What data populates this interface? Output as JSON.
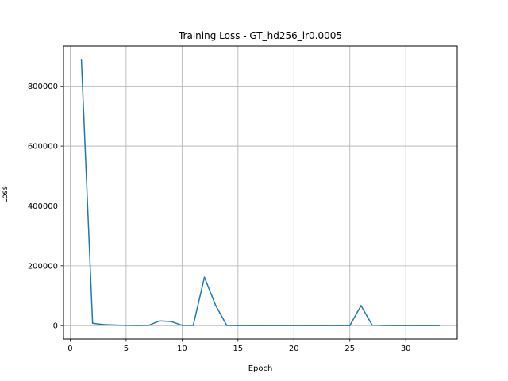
{
  "chart_data": {
    "type": "line",
    "title": "Training Loss - GT_hd256_lr0.0005",
    "xlabel": "Epoch",
    "ylabel": "Loss",
    "xlim": [
      -0.6,
      34.6
    ],
    "ylim": [
      -44500,
      934500
    ],
    "xticks": [
      0,
      5,
      10,
      15,
      20,
      25,
      30
    ],
    "yticks": [
      0,
      200000,
      400000,
      600000,
      800000
    ],
    "ytick_labels": [
      "0",
      "200000",
      "400000",
      "600000",
      "800000"
    ],
    "grid": true,
    "series": [
      {
        "color": "#1f77b4",
        "x": [
          1,
          2,
          3,
          4,
          5,
          6,
          7,
          8,
          9,
          10,
          11,
          12,
          13,
          14,
          15,
          16,
          17,
          18,
          19,
          20,
          21,
          22,
          23,
          24,
          25,
          26,
          27,
          28,
          29,
          30,
          31,
          32,
          33
        ],
        "y": [
          890000,
          8000,
          3500,
          2000,
          1000,
          500,
          800,
          16000,
          14000,
          1000,
          500,
          162000,
          68000,
          500,
          300,
          300,
          300,
          300,
          300,
          300,
          300,
          300,
          300,
          300,
          300,
          67000,
          1500,
          500,
          300,
          300,
          300,
          300,
          300
        ]
      }
    ]
  }
}
